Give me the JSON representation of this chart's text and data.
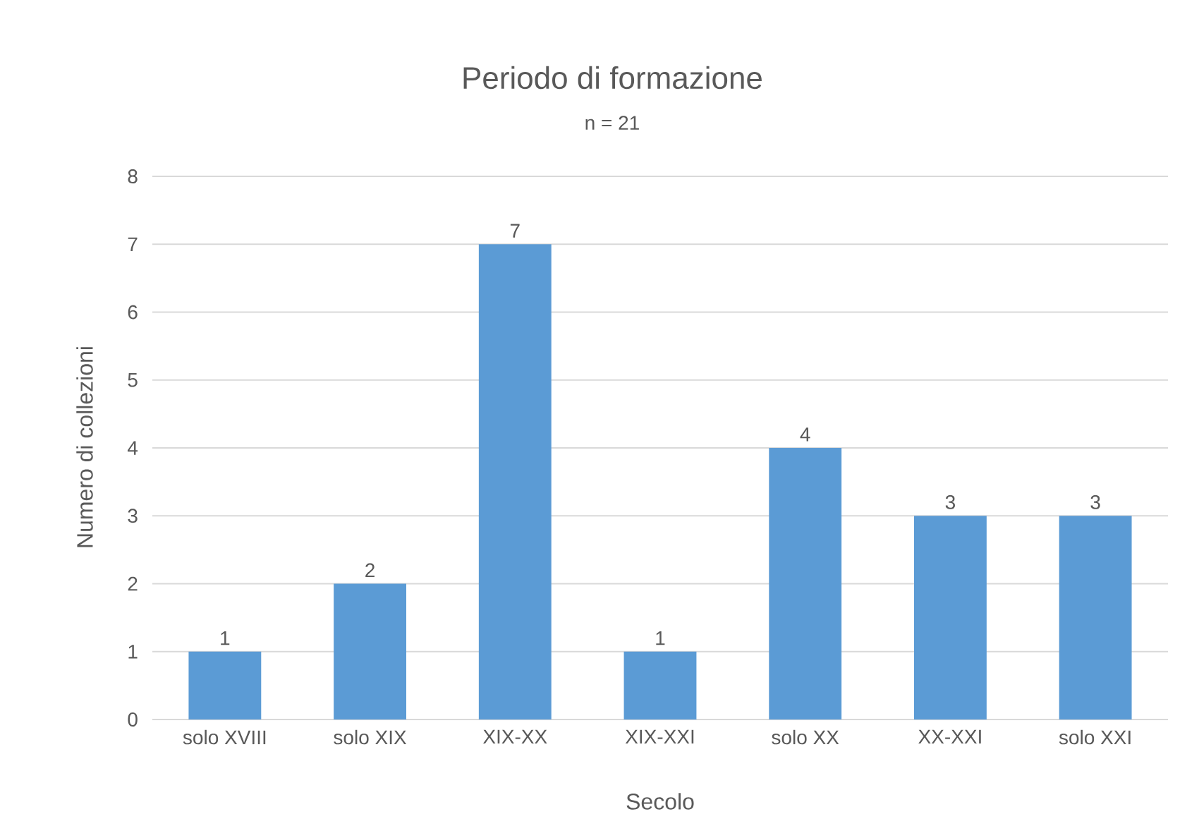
{
  "chart_data": {
    "type": "bar",
    "title": "Periodo di formazione",
    "subtitle": "n = 21",
    "xlabel": "Secolo",
    "ylabel": "Numero di collezioni",
    "categories": [
      "solo XVIII",
      "solo XIX",
      "XIX-XX",
      "XIX-XXI",
      "solo XX",
      "XX-XXI",
      "solo XXI"
    ],
    "values": [
      1,
      2,
      7,
      1,
      4,
      3,
      3
    ],
    "color": "#5b9bd5",
    "ylim": [
      0,
      8
    ],
    "yticks": [
      0,
      1,
      2,
      3,
      4,
      5,
      6,
      7,
      8
    ],
    "grid": "y",
    "data_labels": true
  }
}
